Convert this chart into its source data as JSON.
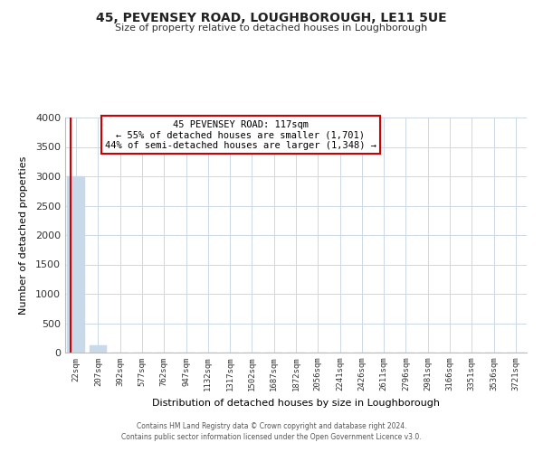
{
  "title": "45, PEVENSEY ROAD, LOUGHBOROUGH, LE11 5UE",
  "subtitle": "Size of property relative to detached houses in Loughborough",
  "xlabel": "Distribution of detached houses by size in Loughborough",
  "ylabel": "Number of detached properties",
  "bar_labels": [
    "22sqm",
    "207sqm",
    "392sqm",
    "577sqm",
    "762sqm",
    "947sqm",
    "1132sqm",
    "1317sqm",
    "1502sqm",
    "1687sqm",
    "1872sqm",
    "2056sqm",
    "2241sqm",
    "2426sqm",
    "2611sqm",
    "2796sqm",
    "2981sqm",
    "3166sqm",
    "3351sqm",
    "3536sqm",
    "3721sqm"
  ],
  "bar_values": [
    3000,
    130,
    0,
    0,
    0,
    0,
    0,
    0,
    0,
    0,
    0,
    0,
    0,
    0,
    0,
    0,
    0,
    0,
    0,
    0,
    0
  ],
  "bar_color": "#c8daea",
  "marker_color": "#cc0000",
  "ylim": [
    0,
    4000
  ],
  "yticks": [
    0,
    500,
    1000,
    1500,
    2000,
    2500,
    3000,
    3500,
    4000
  ],
  "annotation_title": "45 PEVENSEY ROAD: 117sqm",
  "annotation_line1": "← 55% of detached houses are smaller (1,701)",
  "annotation_line2": "44% of semi-detached houses are larger (1,348) →",
  "annotation_box_color": "#ffffff",
  "annotation_box_edge": "#cc0000",
  "footer_line1": "Contains HM Land Registry data © Crown copyright and database right 2024.",
  "footer_line2": "Contains public sector information licensed under the Open Government Licence v3.0.",
  "bg_color": "#ffffff",
  "grid_color": "#ccd8e4"
}
